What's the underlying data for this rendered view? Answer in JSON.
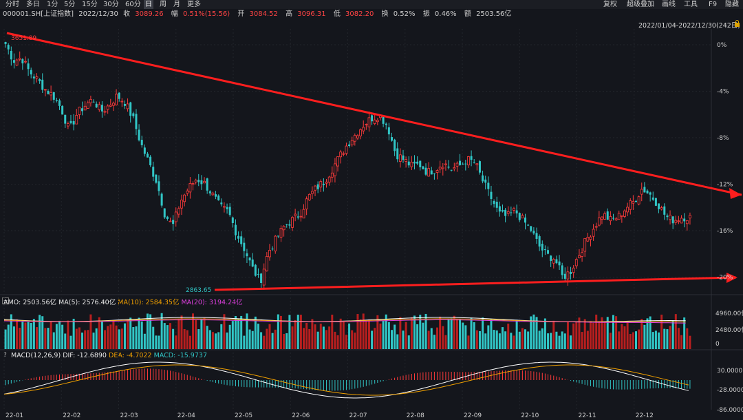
{
  "toolbar": {
    "periods": [
      "分时",
      "多日",
      "1分",
      "5分",
      "15分",
      "30分",
      "60分",
      "日",
      "周",
      "月",
      "更多"
    ],
    "active_period": "日",
    "right_items": [
      "复权",
      "超级叠加",
      "画线",
      "工具",
      "F9",
      "隐藏"
    ]
  },
  "info": {
    "code": "000001.SH[上证指数]",
    "date": "2022/12/30",
    "close_label": "收",
    "close": "3089.26",
    "change_label": "幅",
    "change": "0.51%(15.56)",
    "open_label": "开",
    "open": "3084.52",
    "high_label": "高",
    "high": "3096.31",
    "low_label": "低",
    "low": "3082.20",
    "turnover_label": "换",
    "turnover": "0.52%",
    "amplitude_label": "振",
    "amplitude": "0.46%",
    "amount_label": "额",
    "amount": "2503.56亿"
  },
  "range_label": "2022/01/04-2022/12/30(242日)",
  "price_axis": [
    "0%",
    "-4%",
    "-8%",
    "-12%",
    "-16%",
    "-20%"
  ],
  "markers": {
    "high": "3651.89",
    "low": "2863.65"
  },
  "volume": {
    "amo": "AMO: 2503.56亿",
    "ma5": "MA(5): 2576.40亿",
    "ma10": "MA(10): 2584.35亿",
    "ma20": "MA(20): 3194.24亿",
    "axis": [
      "4960.00亿",
      "2480.00亿",
      "0"
    ]
  },
  "macd": {
    "name": "MACD(12,26,9)",
    "dif": "DIF: -12.6890",
    "dea": "DEA: -4.7022",
    "macd": "MACD: -15.9737",
    "axis": [
      "30.0000",
      "-28.0000",
      "-86.0000"
    ]
  },
  "time_axis": [
    "22-01",
    "22-02",
    "22-03",
    "22-04",
    "22-05",
    "22-06",
    "22-07",
    "22-08",
    "22-09",
    "22-10",
    "22-11",
    "22-12"
  ],
  "chart_data": {
    "type": "candlestick",
    "title": "000001.SH 上证指数 日K 2022",
    "close_path": [
      3633,
      3580,
      3590,
      3545,
      3520,
      3490,
      3470,
      3430,
      3360,
      3415,
      3440,
      3460,
      3420,
      3440,
      3470,
      3450,
      3400,
      3320,
      3260,
      3200,
      3100,
      3060,
      3140,
      3180,
      3210,
      3195,
      3160,
      3120,
      3105,
      3040,
      2990,
      2930,
      2886,
      2980,
      3020,
      3060,
      3080,
      3100,
      3150,
      3180,
      3200,
      3240,
      3280,
      3320,
      3350,
      3380,
      3400,
      3410,
      3375,
      3290,
      3270,
      3250,
      3255,
      3230,
      3240,
      3260,
      3240,
      3250,
      3270,
      3260,
      3200,
      3150,
      3100,
      3090,
      3110,
      3080,
      3050,
      3000,
      2970,
      2960,
      2900,
      2920,
      2970,
      3020,
      3060,
      3100,
      3080,
      3090,
      3120,
      3140,
      3180,
      3160,
      3130,
      3090,
      3080,
      3090,
      3089
    ],
    "price_range": [
      2863.65,
      3651.89
    ],
    "trendlines": [
      "upper red falling resistance",
      "lower red rising support"
    ],
    "volume_scale_yi": [
      0,
      4960
    ]
  }
}
